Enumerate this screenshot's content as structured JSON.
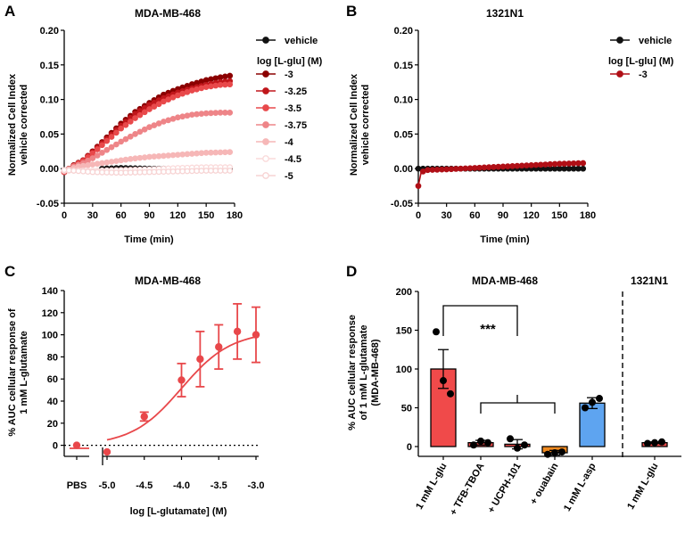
{
  "figure": {
    "labels": [
      "A",
      "B",
      "C",
      "D"
    ]
  },
  "chart_data": [
    {
      "type": "line",
      "panel": "A",
      "title": "MDA-MB-468",
      "xlabel": "Time (min)",
      "ylabel": [
        "Normalized Cell Index",
        "vehicle corrected"
      ],
      "xlim": [
        0,
        180
      ],
      "ylim": [
        -0.05,
        0.2
      ],
      "xticks": [
        "0",
        "30",
        "60",
        "90",
        "120",
        "150",
        "180"
      ],
      "yticks": [
        "-0.05",
        "0.00",
        "0.05",
        "0.10",
        "0.15",
        "0.20"
      ],
      "legend_title": "log [L-glu] (M)",
      "series": [
        {
          "name": "vehicle",
          "color": "#111111",
          "points": [
            [
              40,
              0
            ],
            [
              60,
              0.001
            ],
            [
              90,
              0
            ],
            [
              120,
              0
            ],
            [
              150,
              0
            ],
            [
              175,
              0
            ]
          ]
        },
        {
          "name": "-3",
          "color": "#8b0000",
          "points": [
            [
              0,
              -0.005
            ],
            [
              10,
              0.005
            ],
            [
              20,
              0.012
            ],
            [
              30,
              0.025
            ],
            [
              45,
              0.045
            ],
            [
              60,
              0.065
            ],
            [
              75,
              0.082
            ],
            [
              90,
              0.095
            ],
            [
              105,
              0.107
            ],
            [
              120,
              0.115
            ],
            [
              135,
              0.122
            ],
            [
              150,
              0.128
            ],
            [
              165,
              0.132
            ],
            [
              178,
              0.135
            ]
          ]
        },
        {
          "name": "-3.25",
          "color": "#c0161b",
          "points": [
            [
              0,
              -0.005
            ],
            [
              10,
              0.004
            ],
            [
              20,
              0.012
            ],
            [
              30,
              0.024
            ],
            [
              45,
              0.043
            ],
            [
              60,
              0.062
            ],
            [
              75,
              0.079
            ],
            [
              90,
              0.092
            ],
            [
              105,
              0.102
            ],
            [
              120,
              0.11
            ],
            [
              135,
              0.116
            ],
            [
              150,
              0.121
            ],
            [
              165,
              0.125
            ],
            [
              178,
              0.127
            ]
          ]
        },
        {
          "name": "-3.5",
          "color": "#e8494b",
          "points": [
            [
              0,
              -0.005
            ],
            [
              10,
              0.004
            ],
            [
              20,
              0.011
            ],
            [
              30,
              0.022
            ],
            [
              45,
              0.04
            ],
            [
              60,
              0.058
            ],
            [
              75,
              0.073
            ],
            [
              90,
              0.086
            ],
            [
              105,
              0.097
            ],
            [
              120,
              0.106
            ],
            [
              135,
              0.113
            ],
            [
              150,
              0.118
            ],
            [
              165,
              0.121
            ],
            [
              178,
              0.122
            ]
          ]
        },
        {
          "name": "-3.75",
          "color": "#ee8588",
          "points": [
            [
              0,
              -0.004
            ],
            [
              10,
              0.003
            ],
            [
              20,
              0.008
            ],
            [
              30,
              0.015
            ],
            [
              45,
              0.027
            ],
            [
              60,
              0.039
            ],
            [
              75,
              0.05
            ],
            [
              90,
              0.06
            ],
            [
              105,
              0.068
            ],
            [
              120,
              0.074
            ],
            [
              135,
              0.078
            ],
            [
              150,
              0.08
            ],
            [
              165,
              0.081
            ],
            [
              178,
              0.081
            ]
          ]
        },
        {
          "name": "-4",
          "color": "#f6b7b7",
          "points": [
            [
              0,
              -0.003
            ],
            [
              15,
              0.003
            ],
            [
              30,
              0.006
            ],
            [
              50,
              0.01
            ],
            [
              70,
              0.014
            ],
            [
              90,
              0.017
            ],
            [
              120,
              0.02
            ],
            [
              150,
              0.023
            ],
            [
              178,
              0.024
            ]
          ]
        },
        {
          "name": "-4.5",
          "color": "#fadada",
          "points": [
            [
              0,
              -0.003
            ],
            [
              30,
              -0.003
            ],
            [
              60,
              -0.002
            ],
            [
              90,
              -0.001
            ],
            [
              120,
              0.001
            ],
            [
              150,
              0.002
            ],
            [
              178,
              0.002
            ]
          ]
        },
        {
          "name": "-5",
          "color": "#f7d3d3",
          "points": [
            [
              0,
              -0.002
            ],
            [
              30,
              -0.005
            ],
            [
              60,
              -0.006
            ],
            [
              90,
              -0.005
            ],
            [
              120,
              -0.004
            ],
            [
              150,
              -0.003
            ],
            [
              178,
              -0.003
            ]
          ]
        }
      ]
    },
    {
      "type": "line",
      "panel": "B",
      "title": "1321N1",
      "xlabel": "Time (min)",
      "ylabel": [
        "Normalized Cell Index",
        "vehicle corrected"
      ],
      "xlim": [
        0,
        180
      ],
      "ylim": [
        -0.05,
        0.2
      ],
      "xticks": [
        "0",
        "30",
        "60",
        "90",
        "120",
        "150",
        "180"
      ],
      "yticks": [
        "-0.05",
        "0.00",
        "0.05",
        "0.10",
        "0.15",
        "0.20"
      ],
      "legend_title": "log [L-glu] (M)",
      "series": [
        {
          "name": "vehicle",
          "color": "#111111",
          "points": [
            [
              0,
              0
            ],
            [
              30,
              0
            ],
            [
              60,
              0
            ],
            [
              90,
              0
            ],
            [
              120,
              0
            ],
            [
              150,
              0
            ],
            [
              175,
              0
            ]
          ]
        },
        {
          "name": "-3",
          "color": "#b00f16",
          "points": [
            [
              0,
              -0.025
            ],
            [
              3,
              -0.005
            ],
            [
              10,
              -0.002
            ],
            [
              30,
              -0.001
            ],
            [
              60,
              0.001
            ],
            [
              90,
              0.003
            ],
            [
              120,
              0.005
            ],
            [
              150,
              0.007
            ],
            [
              175,
              0.008
            ]
          ]
        }
      ]
    },
    {
      "type": "line",
      "panel": "C",
      "title": "MDA-MB-468",
      "xlabel": "log [L-glutamate] (M)",
      "ylabel": [
        "% AUC cellular response of",
        "1 mM L-glutamate"
      ],
      "xlim": [
        -5.4,
        -3.0
      ],
      "ylim": [
        -10,
        140
      ],
      "xticks": [
        "-5.0",
        "-4.5",
        "-4.0",
        "-3.5",
        "-3.0"
      ],
      "yticks": [
        "0",
        "20",
        "40",
        "60",
        "80",
        "100",
        "120",
        "140"
      ],
      "categories": [
        "PBS"
      ],
      "color": "#e8474a",
      "points": [
        {
          "x": "PBS",
          "y": 0
        },
        {
          "x": -5.0,
          "y": -6
        },
        {
          "x": -4.5,
          "y": 26,
          "err": 4
        },
        {
          "x": -4.0,
          "y": 59,
          "err": 15
        },
        {
          "x": -3.75,
          "y": 78,
          "err": 25
        },
        {
          "x": -3.5,
          "y": 89,
          "err": 20
        },
        {
          "x": -3.25,
          "y": 103,
          "err": 25
        },
        {
          "x": -3.0,
          "y": 100,
          "err": 25
        }
      ],
      "fit": {
        "bottom": 0,
        "top": 103,
        "logEC50": -4.0,
        "hill": 1.3
      }
    },
    {
      "type": "bar",
      "panel": "D",
      "groups": [
        "MDA-MB-468",
        "1321N1"
      ],
      "ylabel": [
        "% AUC cellular response",
        "of 1 mM L-glutamate",
        "(MDA-MB-468)"
      ],
      "ylim": [
        -12,
        200
      ],
      "yticks": [
        "0",
        "50",
        "100",
        "150",
        "200"
      ],
      "significance": "***",
      "categories": [
        "1 mM L-glu",
        "+ TFB-TBOA",
        "+ UCPH-101",
        "+ ouabain",
        "1 mM L-asp",
        "1 mM L-glu"
      ],
      "values": [
        100,
        5,
        3,
        -8,
        56,
        5
      ],
      "errors": [
        25,
        3,
        6,
        3,
        7,
        1
      ],
      "colors": [
        "#f04a4a",
        "#f04a4a",
        "#f04a4a",
        "#f08a20",
        "#5ea4f0",
        "#f04a4a"
      ],
      "points": [
        [
          148,
          85,
          68
        ],
        [
          2,
          7,
          5
        ],
        [
          10,
          -2,
          2
        ],
        [
          -10,
          -8,
          -7
        ],
        [
          50,
          57,
          62
        ],
        [
          4,
          5,
          6
        ]
      ]
    }
  ]
}
